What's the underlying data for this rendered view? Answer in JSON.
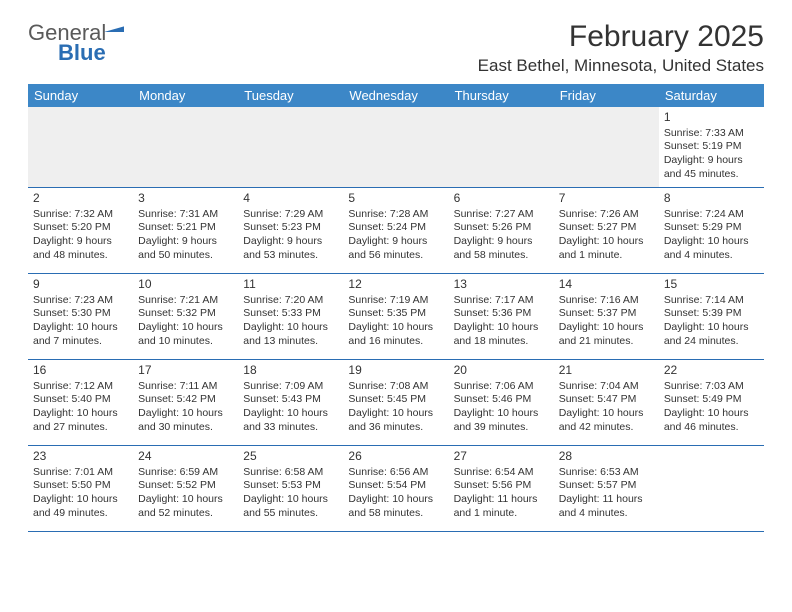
{
  "logo": {
    "part1": "General",
    "part2": "Blue"
  },
  "title": "February 2025",
  "subtitle": "East Bethel, Minnesota, United States",
  "colors": {
    "header_bg": "#3c87c7",
    "border": "#2a6db3",
    "logo_blue": "#2a6db3",
    "text": "#333333",
    "empty_bg": "#efefef"
  },
  "dayHeaders": [
    "Sunday",
    "Monday",
    "Tuesday",
    "Wednesday",
    "Thursday",
    "Friday",
    "Saturday"
  ],
  "weeks": [
    [
      null,
      null,
      null,
      null,
      null,
      null,
      {
        "n": "1",
        "sr": "7:33 AM",
        "ss": "5:19 PM",
        "dl": "9 hours and 45 minutes."
      }
    ],
    [
      {
        "n": "2",
        "sr": "7:32 AM",
        "ss": "5:20 PM",
        "dl": "9 hours and 48 minutes."
      },
      {
        "n": "3",
        "sr": "7:31 AM",
        "ss": "5:21 PM",
        "dl": "9 hours and 50 minutes."
      },
      {
        "n": "4",
        "sr": "7:29 AM",
        "ss": "5:23 PM",
        "dl": "9 hours and 53 minutes."
      },
      {
        "n": "5",
        "sr": "7:28 AM",
        "ss": "5:24 PM",
        "dl": "9 hours and 56 minutes."
      },
      {
        "n": "6",
        "sr": "7:27 AM",
        "ss": "5:26 PM",
        "dl": "9 hours and 58 minutes."
      },
      {
        "n": "7",
        "sr": "7:26 AM",
        "ss": "5:27 PM",
        "dl": "10 hours and 1 minute."
      },
      {
        "n": "8",
        "sr": "7:24 AM",
        "ss": "5:29 PM",
        "dl": "10 hours and 4 minutes."
      }
    ],
    [
      {
        "n": "9",
        "sr": "7:23 AM",
        "ss": "5:30 PM",
        "dl": "10 hours and 7 minutes."
      },
      {
        "n": "10",
        "sr": "7:21 AM",
        "ss": "5:32 PM",
        "dl": "10 hours and 10 minutes."
      },
      {
        "n": "11",
        "sr": "7:20 AM",
        "ss": "5:33 PM",
        "dl": "10 hours and 13 minutes."
      },
      {
        "n": "12",
        "sr": "7:19 AM",
        "ss": "5:35 PM",
        "dl": "10 hours and 16 minutes."
      },
      {
        "n": "13",
        "sr": "7:17 AM",
        "ss": "5:36 PM",
        "dl": "10 hours and 18 minutes."
      },
      {
        "n": "14",
        "sr": "7:16 AM",
        "ss": "5:37 PM",
        "dl": "10 hours and 21 minutes."
      },
      {
        "n": "15",
        "sr": "7:14 AM",
        "ss": "5:39 PM",
        "dl": "10 hours and 24 minutes."
      }
    ],
    [
      {
        "n": "16",
        "sr": "7:12 AM",
        "ss": "5:40 PM",
        "dl": "10 hours and 27 minutes."
      },
      {
        "n": "17",
        "sr": "7:11 AM",
        "ss": "5:42 PM",
        "dl": "10 hours and 30 minutes."
      },
      {
        "n": "18",
        "sr": "7:09 AM",
        "ss": "5:43 PM",
        "dl": "10 hours and 33 minutes."
      },
      {
        "n": "19",
        "sr": "7:08 AM",
        "ss": "5:45 PM",
        "dl": "10 hours and 36 minutes."
      },
      {
        "n": "20",
        "sr": "7:06 AM",
        "ss": "5:46 PM",
        "dl": "10 hours and 39 minutes."
      },
      {
        "n": "21",
        "sr": "7:04 AM",
        "ss": "5:47 PM",
        "dl": "10 hours and 42 minutes."
      },
      {
        "n": "22",
        "sr": "7:03 AM",
        "ss": "5:49 PM",
        "dl": "10 hours and 46 minutes."
      }
    ],
    [
      {
        "n": "23",
        "sr": "7:01 AM",
        "ss": "5:50 PM",
        "dl": "10 hours and 49 minutes."
      },
      {
        "n": "24",
        "sr": "6:59 AM",
        "ss": "5:52 PM",
        "dl": "10 hours and 52 minutes."
      },
      {
        "n": "25",
        "sr": "6:58 AM",
        "ss": "5:53 PM",
        "dl": "10 hours and 55 minutes."
      },
      {
        "n": "26",
        "sr": "6:56 AM",
        "ss": "5:54 PM",
        "dl": "10 hours and 58 minutes."
      },
      {
        "n": "27",
        "sr": "6:54 AM",
        "ss": "5:56 PM",
        "dl": "11 hours and 1 minute."
      },
      {
        "n": "28",
        "sr": "6:53 AM",
        "ss": "5:57 PM",
        "dl": "11 hours and 4 minutes."
      },
      null
    ]
  ],
  "labels": {
    "sunrise": "Sunrise:",
    "sunset": "Sunset:",
    "daylight": "Daylight:"
  }
}
